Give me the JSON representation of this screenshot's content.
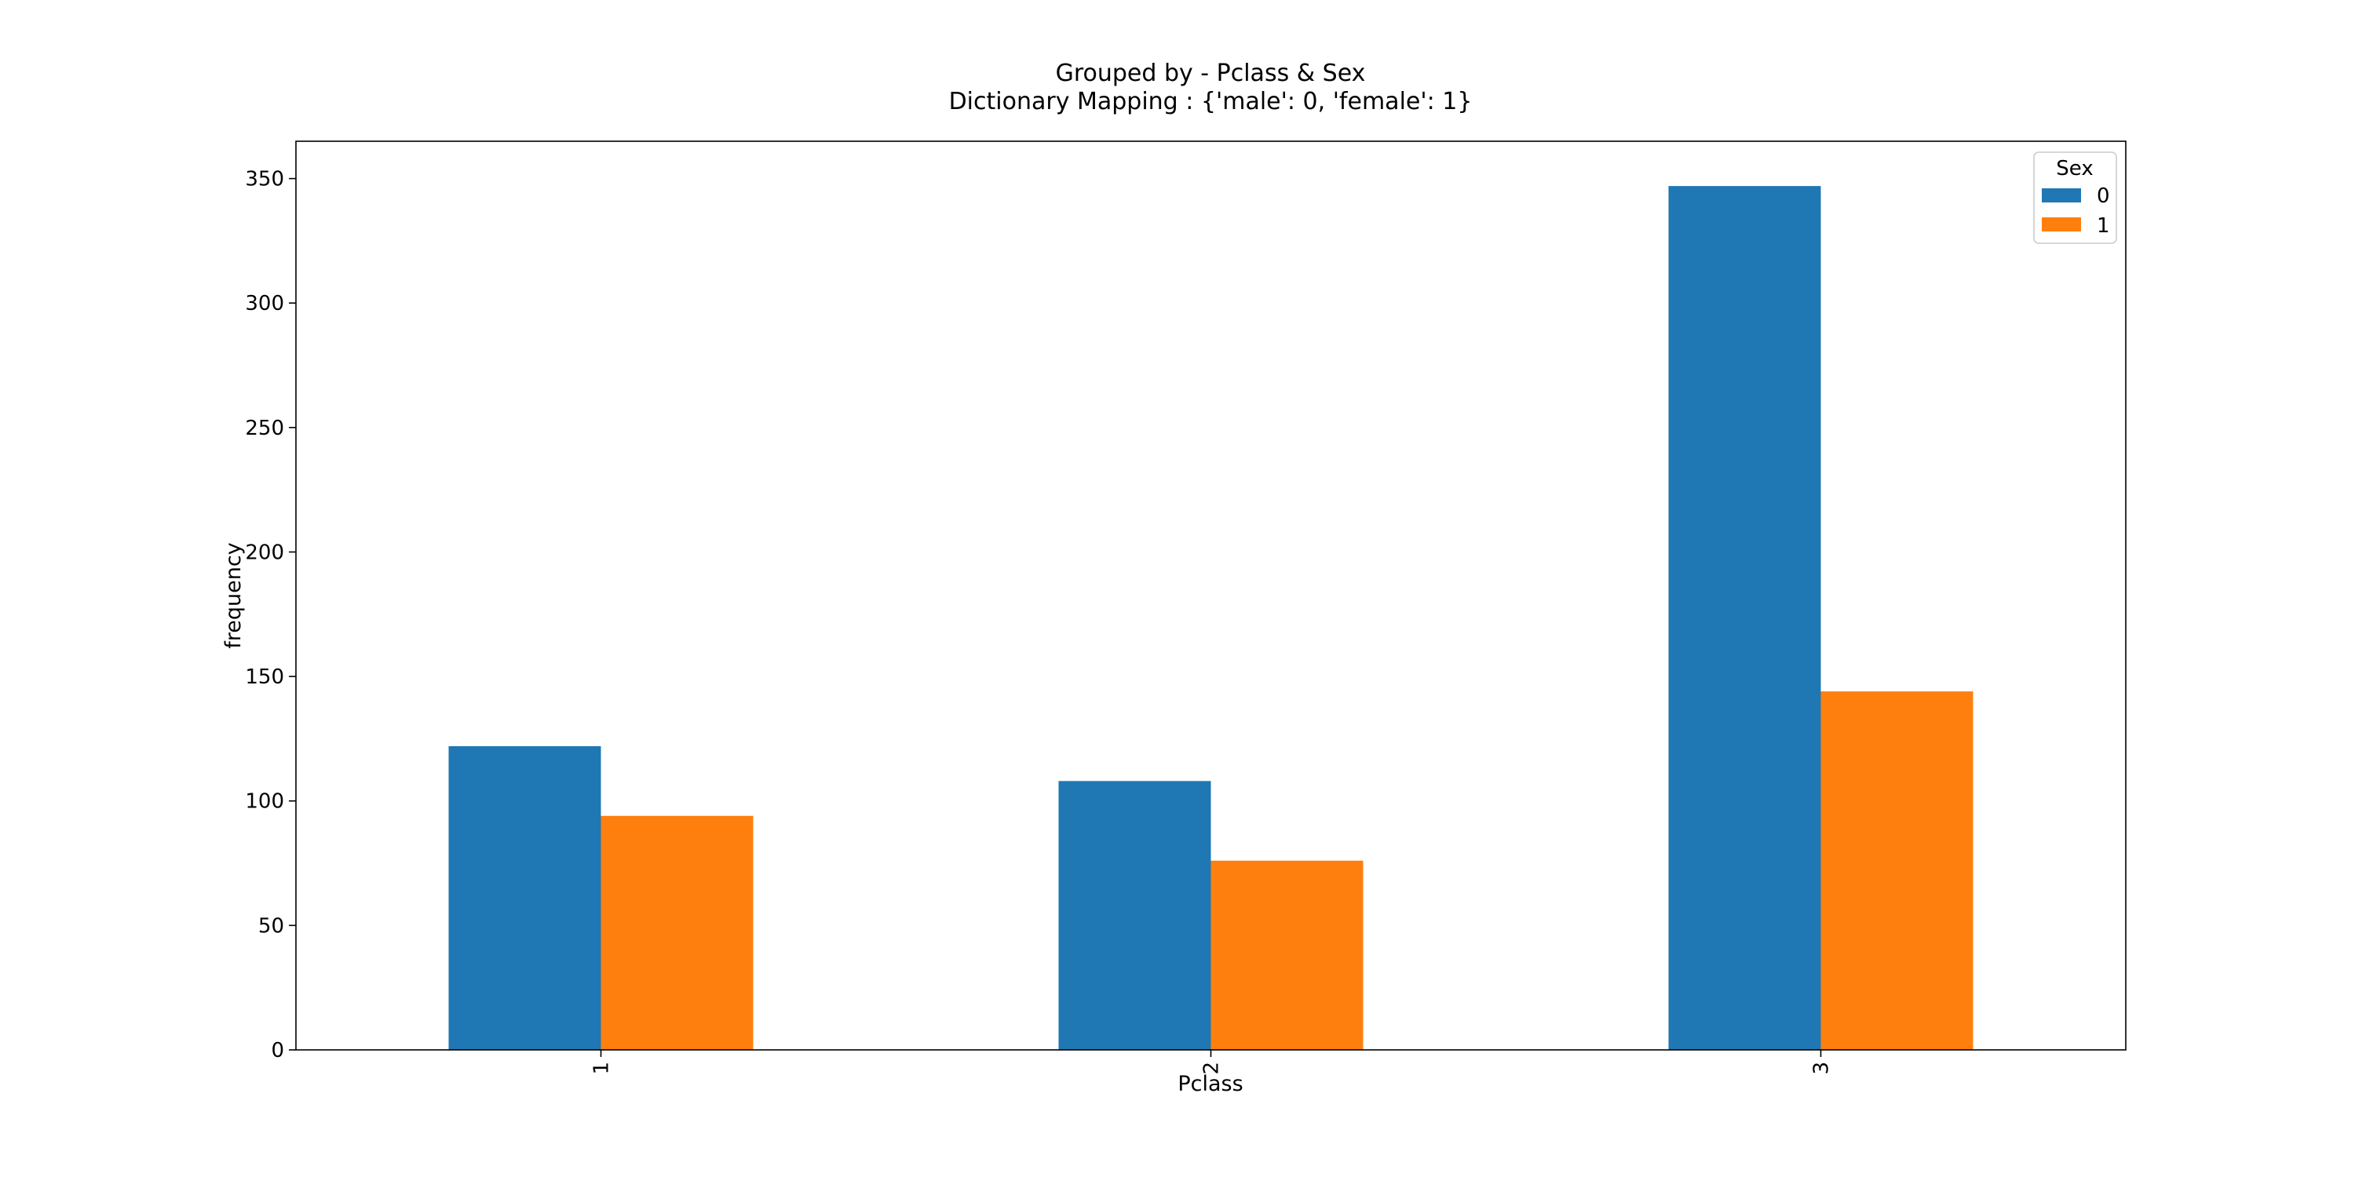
{
  "chart_data": {
    "type": "bar",
    "title_lines": [
      "Grouped by - Pclass & Sex",
      "Dictionary Mapping : {'male': 0, 'female': 1}"
    ],
    "xlabel": "Pclass",
    "ylabel": "frequency",
    "categories": [
      "1",
      "2",
      "3"
    ],
    "series": [
      {
        "name": "0",
        "values": [
          122,
          108,
          347
        ]
      },
      {
        "name": "1",
        "values": [
          94,
          76,
          144
        ]
      }
    ],
    "ylim": [
      0,
      365
    ],
    "yticks": [
      0,
      50,
      100,
      150,
      200,
      250,
      300,
      350
    ],
    "legend": {
      "title": "Sex",
      "placement": "top-right"
    },
    "colors": [
      "#1f77b4",
      "#ff7f0e"
    ],
    "grid": false
  }
}
